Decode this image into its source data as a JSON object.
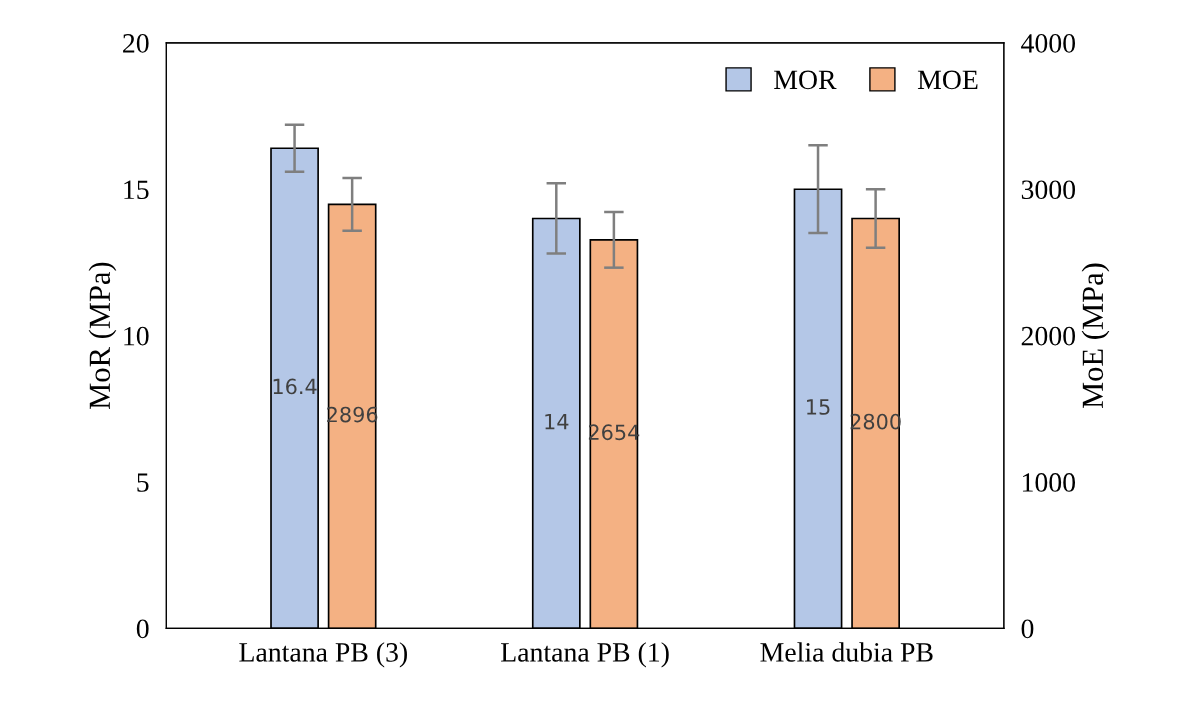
{
  "chart_data": {
    "type": "bar",
    "categories": [
      "Lantana PB (3)",
      "Lantana PB (1)",
      "Melia dubia PB"
    ],
    "ylabel": "MoR (MPa)",
    "y2label": "MoE (MPa)",
    "series": [
      {
        "name": "MOR",
        "color": "#b4c7e7",
        "values": [
          16.4,
          14,
          15
        ],
        "errors": [
          0.8,
          1.2,
          1.5
        ]
      },
      {
        "name": "MOE",
        "color": "#f4b183",
        "axis": "y2",
        "values": [
          2896,
          2654,
          2800
        ],
        "errors": [
          180,
          190,
          200
        ]
      }
    ],
    "ylim": [
      0,
      20
    ],
    "yticks": [
      0,
      5,
      10,
      15,
      20
    ],
    "y2lim": [
      0,
      4000
    ],
    "y2ticks": [
      0,
      1000,
      2000,
      3000,
      4000
    ],
    "data_labels": true,
    "legend": "top right",
    "grid": false
  }
}
